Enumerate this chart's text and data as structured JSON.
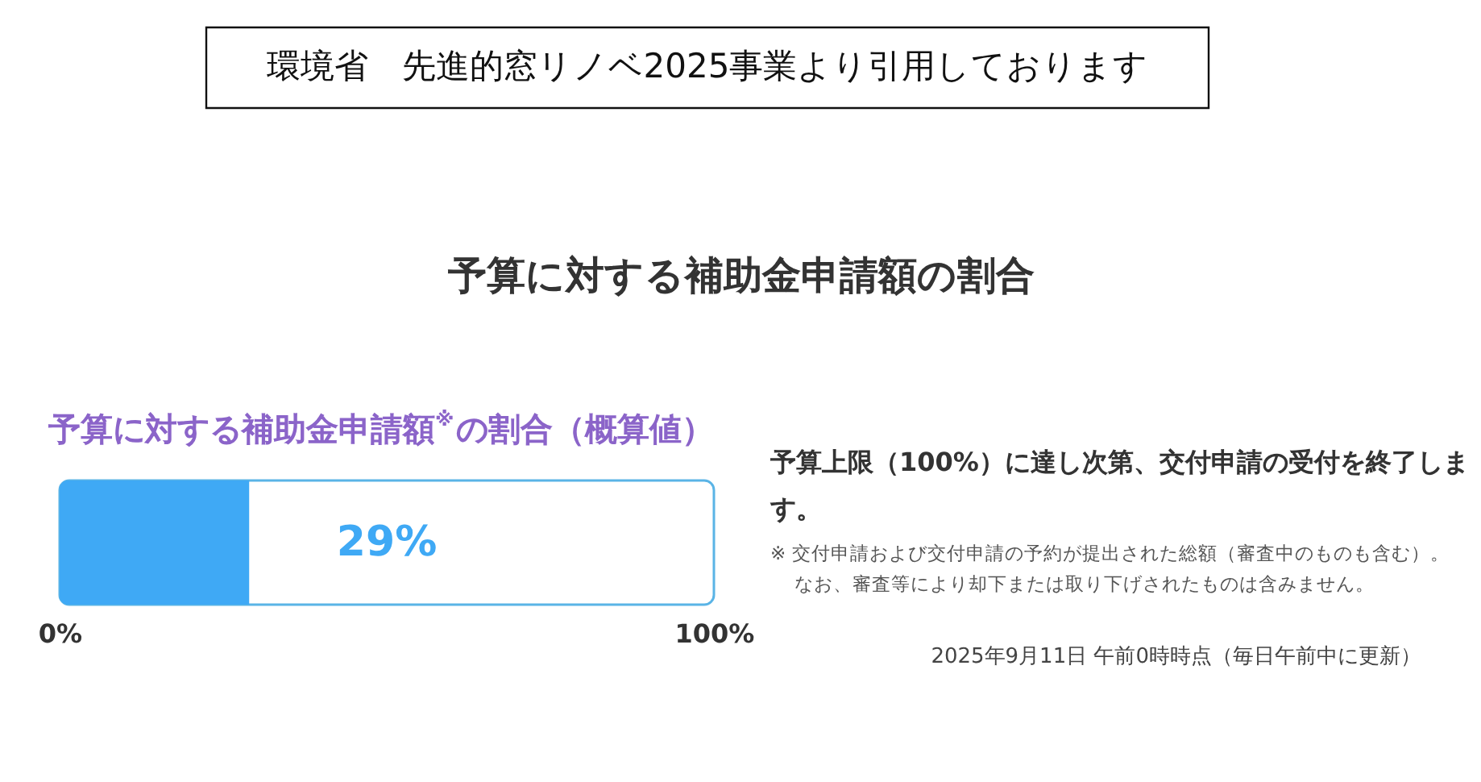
{
  "chart_data": {
    "type": "bar",
    "orientation": "horizontal",
    "title": "予算に対する補助金申請額の割合",
    "subtitle": "予算に対する補助金申請額$^{※}$の割合（概算値）",
    "categories": [
      null
    ],
    "values": [
      29
    ],
    "color": "#3fa9f5",
    "xlim": [
      0,
      100
    ],
    "xticks": [
      {
        "value": 0,
        "label": "0%"
      },
      {
        "value": 100,
        "label": "100%"
      }
    ],
    "value_labels": [
      "29%"
    ],
    "annotations": [
      "環境省　先進的窓リノベ2025事業より引用しております",
      "予算上限（100%）に達し次第、交付申請の受付を終了します。",
      "※ 交付申請および交付申請の予約が提出された総額（審査中のものも含む）。",
      "なお、審査等により却下または取り下げされたものは含みません。",
      "2025年9月11日 午前0時時点（毎日午前中に更新）"
    ]
  }
}
